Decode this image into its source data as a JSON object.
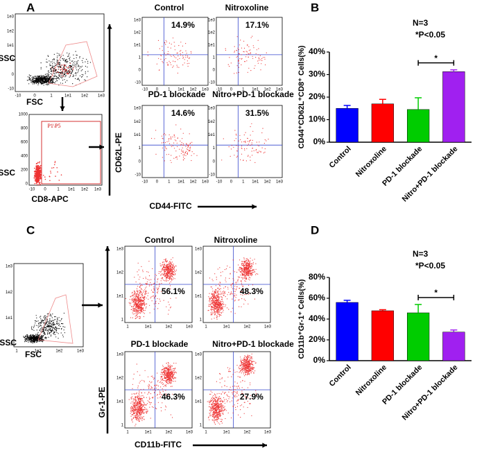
{
  "panel_labels": [
    "A",
    "B",
    "C",
    "D"
  ],
  "flow_a": {
    "fsc": "FSC",
    "ssc": "SSC",
    "cd8": "CD8-APC",
    "gate_name": "P1\\P5",
    "gate_yticks": [
      "1000",
      "800",
      "600",
      "400",
      "200",
      "0"
    ],
    "ticks": [
      "1e3",
      "1e2",
      "1e1",
      "1",
      "0",
      "-10"
    ],
    "x_axis": "CD44-FITC",
    "y_axis": "CD62L-PE",
    "plots": [
      {
        "title": "Control",
        "pct": "14.9%"
      },
      {
        "title": "Nitroxoline",
        "pct": "17.1%"
      },
      {
        "title": "PD-1 blockade",
        "pct": "14.6%"
      },
      {
        "title": "Nitro+PD-1 blockade",
        "pct": "31.5%"
      }
    ]
  },
  "flow_c": {
    "fsc": "FSC",
    "ssc": "SSC",
    "ticks": [
      "1e3",
      "1e2",
      "1e1",
      "1"
    ],
    "x_axis": "CD11b-FITC",
    "y_axis": "Gr-1-PE",
    "plots": [
      {
        "title": "Control",
        "pct": "56.1%"
      },
      {
        "title": "Nitroxoline",
        "pct": "48.3%"
      },
      {
        "title": "PD-1 blockade",
        "pct": "46.3%"
      },
      {
        "title": "Nitro+PD-1 blockade",
        "pct": "27.9%"
      }
    ]
  },
  "chart_data": [
    {
      "type": "bar",
      "ylabel": "CD44⁺CD62L⁺CD8⁺ Cells(%)",
      "categories": [
        "Control",
        "Nitroxoline",
        "PD-1 blockade",
        "Nitro+PD-1 blockade"
      ],
      "values": [
        15,
        17,
        14.5,
        31.3
      ],
      "errors": [
        1.3,
        2,
        5.2,
        0.8
      ],
      "colors": [
        "#0000ff",
        "#ff0000",
        "#00cc00",
        "#a020f0"
      ],
      "ylim": [
        0,
        40
      ],
      "yticks": [
        {
          "value": 0,
          "label": "0%"
        },
        {
          "value": 10,
          "label": "10%"
        },
        {
          "value": 20,
          "label": "20%"
        },
        {
          "value": 30,
          "label": "30%"
        },
        {
          "value": 40,
          "label": "40%"
        }
      ],
      "annotations": [
        "N=3",
        "*P<0.05"
      ],
      "significance": "*"
    },
    {
      "type": "bar",
      "ylabel": "CD11b⁺Gr-1⁺ Cells(%)",
      "categories": [
        "Control",
        "Nitroxoline",
        "PD-1 blockade",
        "Nitro+PD-1 blockade"
      ],
      "values": [
        56,
        48,
        46,
        27.5
      ],
      "errors": [
        2,
        1,
        8,
        2
      ],
      "colors": [
        "#0000ff",
        "#ff0000",
        "#00cc00",
        "#a020f0"
      ],
      "ylim": [
        0,
        80
      ],
      "yticks": [
        {
          "value": 0,
          "label": "0%"
        },
        {
          "value": 20,
          "label": "20%"
        },
        {
          "value": 40,
          "label": "40%"
        },
        {
          "value": 60,
          "label": "60%"
        },
        {
          "value": 80,
          "label": "80%"
        }
      ],
      "annotations": [
        "N=3",
        "*P<0.05"
      ],
      "significance": "*"
    }
  ]
}
